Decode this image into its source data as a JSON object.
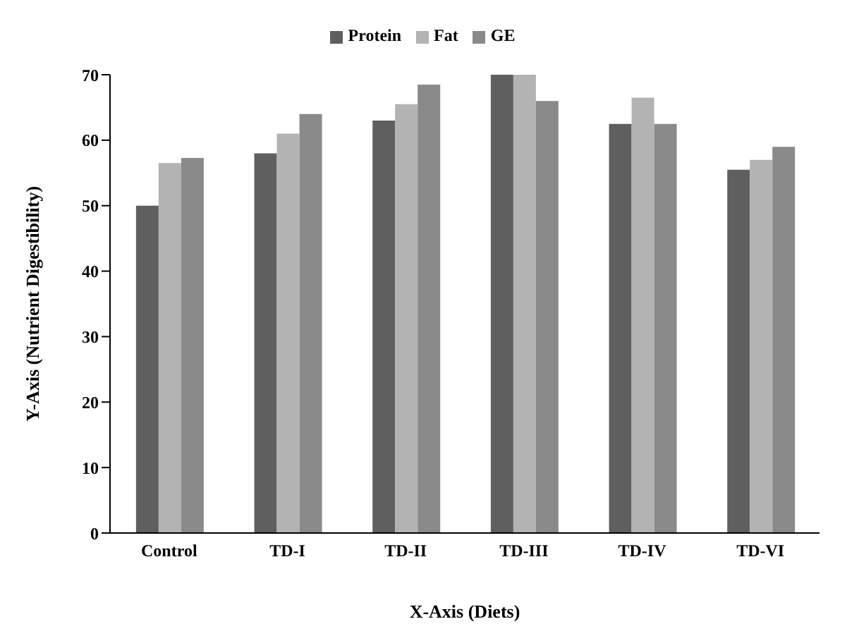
{
  "chart_data": {
    "type": "bar",
    "xlabel": "X-Axis (Diets)",
    "ylabel": "Y-Axis (Nutrient Digestibility)",
    "categories": [
      "Control",
      "TD-I",
      "TD-II",
      "TD-III",
      "TD-IV",
      "TD-VI"
    ],
    "series": [
      {
        "name": "Protein",
        "color": "#5f5f5f",
        "values": [
          50,
          58,
          63,
          70,
          62.5,
          55.5
        ]
      },
      {
        "name": "Fat",
        "color": "#b3b3b3",
        "values": [
          56.5,
          61,
          65.5,
          70,
          66.5,
          57
        ]
      },
      {
        "name": "GE",
        "color": "#8a8a8a",
        "values": [
          57.3,
          64,
          68.5,
          66,
          62.5,
          59
        ]
      }
    ],
    "ylim": [
      0,
      70
    ],
    "yticks": [
      0,
      10,
      20,
      30,
      40,
      50,
      60,
      70
    ],
    "grid": false,
    "legend": "top"
  }
}
